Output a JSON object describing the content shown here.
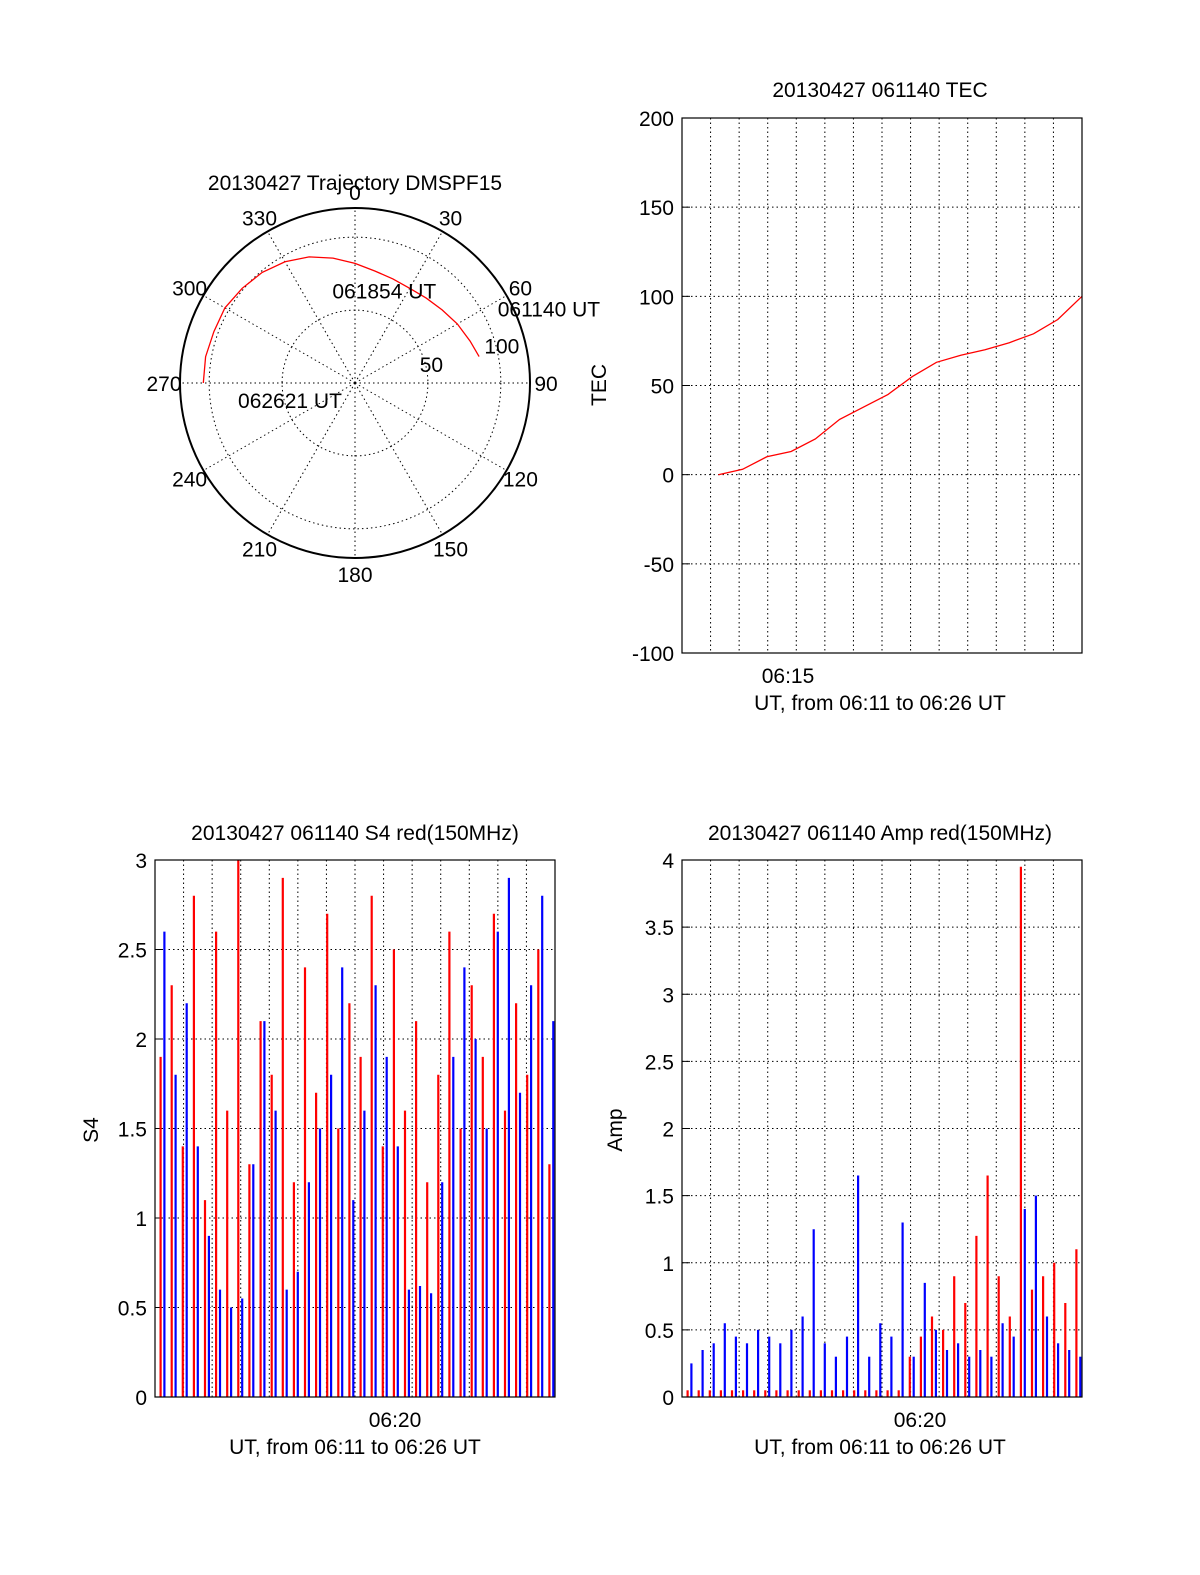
{
  "chart_data": [
    {
      "id": "trajectory",
      "type": "polar",
      "title": "20130427 Trajectory DMSPF15",
      "theta_labels": [
        "0",
        "30",
        "60",
        "90",
        "120",
        "150",
        "180",
        "210",
        "240",
        "270",
        "300",
        "330"
      ],
      "theta_degrees": [
        0,
        30,
        60,
        90,
        120,
        150,
        180,
        210,
        240,
        270,
        300,
        330
      ],
      "radial_labels": [
        "50",
        "100"
      ],
      "radial_values": [
        50,
        100
      ],
      "rmax": 100,
      "line_color": "#ff0000",
      "series": [
        {
          "azimuth": [
            78,
            70,
            60,
            50,
            40,
            30,
            20,
            10,
            0,
            -10,
            -20,
            -30,
            -40,
            -50,
            -60,
            -70,
            -80,
            -90
          ],
          "radius": [
            87,
            84,
            81,
            78,
            76,
            75,
            76,
            78,
            82,
            87,
            92,
            96,
            99,
            101,
            103,
            103,
            104,
            104
          ]
        }
      ],
      "annotations": [
        {
          "text": "061140 UT",
          "azimuth": 65,
          "radius": 108
        },
        {
          "text": "061854 UT",
          "azimuth": -15,
          "radius": 60
        },
        {
          "text": "062621 UT",
          "azimuth": 258,
          "radius": 82
        }
      ]
    },
    {
      "id": "tec",
      "type": "line",
      "title": "20130427 061140 TEC",
      "ylabel": "TEC",
      "xlabel": "UT, from 06:11 to 06:26 UT",
      "ylim": [
        -100,
        200
      ],
      "yticks": [
        -100,
        -50,
        0,
        50,
        100,
        150,
        200
      ],
      "xlim": [
        670,
        1000
      ],
      "xtick_label": "06:15",
      "line_color": "#ff0000",
      "grid": true,
      "x": [
        700,
        720,
        740,
        760,
        780,
        800,
        820,
        840,
        860,
        880,
        900,
        920,
        940,
        960,
        980,
        1000
      ],
      "y": [
        0,
        3,
        10,
        13,
        20,
        31,
        38,
        45,
        55,
        63,
        67,
        70,
        74,
        79,
        87,
        100
      ]
    },
    {
      "id": "s4",
      "type": "line",
      "title": "20130427 061140 S4 red(150MHz)",
      "ylabel": "S4",
      "xlabel": "UT, from 06:11 to 06:26 UT",
      "ylim": [
        0,
        3
      ],
      "yticks": [
        0,
        0.5,
        1,
        1.5,
        2,
        2.5,
        3
      ],
      "xtick_label": "06:20",
      "grid": true,
      "series": [
        {
          "name": "red",
          "color": "#ff0000",
          "values": [
            1.9,
            2.3,
            1.4,
            2.8,
            1.1,
            2.6,
            1.6,
            3.0,
            1.3,
            2.1,
            1.8,
            2.9,
            1.2,
            2.4,
            1.7,
            2.7,
            1.5,
            2.2,
            1.9,
            2.8,
            1.4,
            2.5,
            1.6,
            2.1,
            1.2,
            1.8,
            2.6,
            1.5,
            2.3,
            1.9,
            2.7,
            1.6,
            2.2,
            1.8,
            2.5,
            1.3
          ]
        },
        {
          "name": "blue",
          "color": "#0000ff",
          "values": [
            2.6,
            1.8,
            2.2,
            1.4,
            0.9,
            0.6,
            0.5,
            0.55,
            1.3,
            2.1,
            1.6,
            0.6,
            0.7,
            1.2,
            1.5,
            1.8,
            2.4,
            1.1,
            1.6,
            2.3,
            1.9,
            1.4,
            0.6,
            0.62,
            0.58,
            1.2,
            1.9,
            2.4,
            2.0,
            1.5,
            2.6,
            2.9,
            1.7,
            2.3,
            2.8,
            2.1
          ]
        }
      ]
    },
    {
      "id": "amp",
      "type": "line",
      "title": "20130427 061140 Amp red(150MHz)",
      "ylabel": "Amp",
      "xlabel": "UT, from 06:11 to 06:26 UT",
      "ylim": [
        0,
        4
      ],
      "yticks": [
        0,
        0.5,
        1,
        1.5,
        2,
        2.5,
        3,
        3.5,
        4
      ],
      "xtick_label": "06:20",
      "grid": true,
      "series": [
        {
          "name": "red",
          "color": "#ff0000",
          "values": [
            0.05,
            0.05,
            0.05,
            0.05,
            0.05,
            0.05,
            0.05,
            0.05,
            0.05,
            0.05,
            0.05,
            0.05,
            0.05,
            0.05,
            0.05,
            0.05,
            0.05,
            0.05,
            0.05,
            0.05,
            0.3,
            0.45,
            0.6,
            0.5,
            0.9,
            0.7,
            1.2,
            1.65,
            0.9,
            0.6,
            3.95,
            0.8,
            0.9,
            1.0,
            0.7,
            1.1
          ]
        },
        {
          "name": "blue",
          "color": "#0000ff",
          "values": [
            0.25,
            0.35,
            0.4,
            0.55,
            0.45,
            0.4,
            0.5,
            0.45,
            0.4,
            0.5,
            0.6,
            1.25,
            0.4,
            0.3,
            0.45,
            1.65,
            0.3,
            0.55,
            0.45,
            1.3,
            0.3,
            0.85,
            0.5,
            0.35,
            0.4,
            0.3,
            0.35,
            0.3,
            0.55,
            0.45,
            1.4,
            1.5,
            0.6,
            0.4,
            0.35,
            0.3
          ]
        }
      ]
    }
  ]
}
